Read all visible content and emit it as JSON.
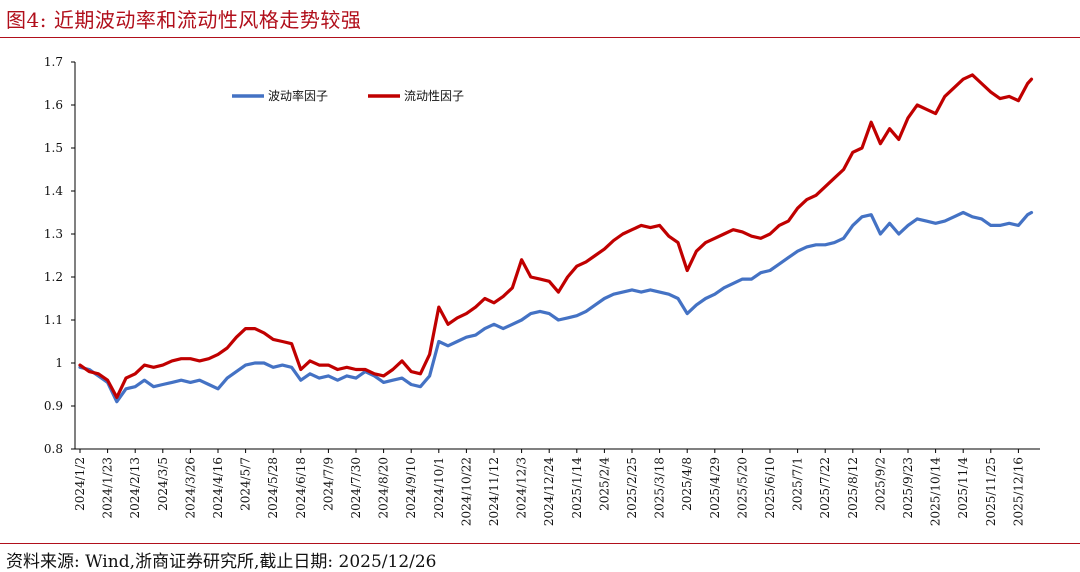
{
  "title": "图4:  近期波动率和流动性风格走势较强",
  "source": "资料来源:  Wind,浙商证券研究所,截止日期:  2025/12/26",
  "colors": {
    "accent": "#b10f1b",
    "volatility": "#4472c4",
    "liquidity": "#c00000"
  },
  "chart_data": {
    "type": "line",
    "title": "",
    "xlabel": "",
    "ylabel": "",
    "ylim": [
      0.8,
      1.7
    ],
    "y_ticks": [
      "0.8",
      "0.9",
      "1",
      "1.1",
      "1.2",
      "1.3",
      "1.4",
      "1.5",
      "1.6",
      "1.7"
    ],
    "x_ticks": [
      "2024/1/2",
      "2024/1/23",
      "2024/2/13",
      "2024/3/5",
      "2024/3/26",
      "2024/4/16",
      "2024/5/7",
      "2024/5/28",
      "2024/6/18",
      "2024/7/9",
      "2024/7/30",
      "2024/8/20",
      "2024/9/10",
      "2024/10/1",
      "2024/10/22",
      "2024/11/12",
      "2024/12/3",
      "2024/12/24",
      "2025/1/14",
      "2025/2/4",
      "2025/2/25",
      "2025/3/18",
      "2025/4/8",
      "2025/4/29",
      "2025/5/20",
      "2025/6/10",
      "2025/7/1",
      "2025/7/22",
      "2025/8/12",
      "2025/9/2",
      "2025/9/23",
      "2025/10/14",
      "2025/11/4",
      "2025/11/25",
      "2025/12/16"
    ],
    "grid": false,
    "legend_position": "top-left",
    "series": [
      {
        "name": "波动率因子",
        "color": "#4472c4",
        "x": [
          "2024/1/2",
          "2024/1/9",
          "2024/1/16",
          "2024/1/23",
          "2024/1/30",
          "2024/2/6",
          "2024/2/13",
          "2024/2/20",
          "2024/2/27",
          "2024/3/5",
          "2024/3/12",
          "2024/3/19",
          "2024/3/26",
          "2024/4/2",
          "2024/4/9",
          "2024/4/16",
          "2024/4/23",
          "2024/4/30",
          "2024/5/7",
          "2024/5/14",
          "2024/5/21",
          "2024/5/28",
          "2024/6/4",
          "2024/6/11",
          "2024/6/18",
          "2024/6/25",
          "2024/7/2",
          "2024/7/9",
          "2024/7/16",
          "2024/7/23",
          "2024/7/30",
          "2024/8/6",
          "2024/8/13",
          "2024/8/20",
          "2024/8/27",
          "2024/9/3",
          "2024/9/10",
          "2024/9/17",
          "2024/9/24",
          "2024/10/1",
          "2024/10/8",
          "2024/10/15",
          "2024/10/22",
          "2024/10/29",
          "2024/11/5",
          "2024/11/12",
          "2024/11/19",
          "2024/11/26",
          "2024/12/3",
          "2024/12/10",
          "2024/12/17",
          "2024/12/24",
          "2024/12/31",
          "2025/1/7",
          "2025/1/14",
          "2025/1/21",
          "2025/1/28",
          "2025/2/4",
          "2025/2/11",
          "2025/2/18",
          "2025/2/25",
          "2025/3/4",
          "2025/3/11",
          "2025/3/18",
          "2025/3/25",
          "2025/4/1",
          "2025/4/8",
          "2025/4/15",
          "2025/4/22",
          "2025/4/29",
          "2025/5/6",
          "2025/5/13",
          "2025/5/20",
          "2025/5/27",
          "2025/6/3",
          "2025/6/10",
          "2025/6/17",
          "2025/6/24",
          "2025/7/1",
          "2025/7/8",
          "2025/7/15",
          "2025/7/22",
          "2025/7/29",
          "2025/8/5",
          "2025/8/12",
          "2025/8/19",
          "2025/8/26",
          "2025/9/2",
          "2025/9/9",
          "2025/9/16",
          "2025/9/23",
          "2025/9/30",
          "2025/10/7",
          "2025/10/14",
          "2025/10/21",
          "2025/10/28",
          "2025/11/4",
          "2025/11/11",
          "2025/11/18",
          "2025/11/25",
          "2025/12/2",
          "2025/12/9",
          "2025/12/16",
          "2025/12/23",
          "2025/12/26"
        ],
        "values": [
          0.99,
          0.985,
          0.97,
          0.955,
          0.91,
          0.94,
          0.945,
          0.96,
          0.945,
          0.95,
          0.955,
          0.96,
          0.955,
          0.96,
          0.95,
          0.94,
          0.965,
          0.98,
          0.995,
          1.0,
          1.0,
          0.99,
          0.995,
          0.99,
          0.96,
          0.975,
          0.965,
          0.97,
          0.96,
          0.97,
          0.965,
          0.98,
          0.97,
          0.955,
          0.96,
          0.965,
          0.95,
          0.945,
          0.97,
          1.05,
          1.04,
          1.05,
          1.06,
          1.065,
          1.08,
          1.09,
          1.08,
          1.09,
          1.1,
          1.115,
          1.12,
          1.115,
          1.1,
          1.105,
          1.11,
          1.12,
          1.135,
          1.15,
          1.16,
          1.165,
          1.17,
          1.165,
          1.17,
          1.165,
          1.16,
          1.15,
          1.115,
          1.135,
          1.15,
          1.16,
          1.175,
          1.185,
          1.195,
          1.195,
          1.21,
          1.215,
          1.23,
          1.245,
          1.26,
          1.27,
          1.275,
          1.275,
          1.28,
          1.29,
          1.32,
          1.34,
          1.345,
          1.3,
          1.325,
          1.3,
          1.32,
          1.335,
          1.33,
          1.325,
          1.33,
          1.34,
          1.35,
          1.34,
          1.335,
          1.32,
          1.32,
          1.325,
          1.32,
          1.345,
          1.35
        ]
      },
      {
        "name": "流动性因子",
        "color": "#c00000",
        "x": [
          "2024/1/2",
          "2024/1/9",
          "2024/1/16",
          "2024/1/23",
          "2024/1/30",
          "2024/2/6",
          "2024/2/13",
          "2024/2/20",
          "2024/2/27",
          "2024/3/5",
          "2024/3/12",
          "2024/3/19",
          "2024/3/26",
          "2024/4/2",
          "2024/4/9",
          "2024/4/16",
          "2024/4/23",
          "2024/4/30",
          "2024/5/7",
          "2024/5/14",
          "2024/5/21",
          "2024/5/28",
          "2024/6/4",
          "2024/6/11",
          "2024/6/18",
          "2024/6/25",
          "2024/7/2",
          "2024/7/9",
          "2024/7/16",
          "2024/7/23",
          "2024/7/30",
          "2024/8/6",
          "2024/8/13",
          "2024/8/20",
          "2024/8/27",
          "2024/9/3",
          "2024/9/10",
          "2024/9/17",
          "2024/9/24",
          "2024/10/1",
          "2024/10/8",
          "2024/10/15",
          "2024/10/22",
          "2024/10/29",
          "2024/11/5",
          "2024/11/12",
          "2024/11/19",
          "2024/11/26",
          "2024/12/3",
          "2024/12/10",
          "2024/12/17",
          "2024/12/24",
          "2024/12/31",
          "2025/1/7",
          "2025/1/14",
          "2025/1/21",
          "2025/1/28",
          "2025/2/4",
          "2025/2/11",
          "2025/2/18",
          "2025/2/25",
          "2025/3/4",
          "2025/3/11",
          "2025/3/18",
          "2025/3/25",
          "2025/4/1",
          "2025/4/8",
          "2025/4/15",
          "2025/4/22",
          "2025/4/29",
          "2025/5/6",
          "2025/5/13",
          "2025/5/20",
          "2025/5/27",
          "2025/6/3",
          "2025/6/10",
          "2025/6/17",
          "2025/6/24",
          "2025/7/1",
          "2025/7/8",
          "2025/7/15",
          "2025/7/22",
          "2025/7/29",
          "2025/8/5",
          "2025/8/12",
          "2025/8/19",
          "2025/8/26",
          "2025/9/2",
          "2025/9/9",
          "2025/9/16",
          "2025/9/23",
          "2025/9/30",
          "2025/10/7",
          "2025/10/14",
          "2025/10/21",
          "2025/10/28",
          "2025/11/4",
          "2025/11/11",
          "2025/11/18",
          "2025/11/25",
          "2025/12/2",
          "2025/12/9",
          "2025/12/16",
          "2025/12/23",
          "2025/12/26"
        ],
        "values": [
          0.995,
          0.98,
          0.975,
          0.96,
          0.92,
          0.965,
          0.975,
          0.995,
          0.99,
          0.995,
          1.005,
          1.01,
          1.01,
          1.005,
          1.01,
          1.02,
          1.035,
          1.06,
          1.08,
          1.08,
          1.07,
          1.055,
          1.05,
          1.045,
          0.985,
          1.005,
          0.995,
          0.995,
          0.985,
          0.99,
          0.985,
          0.985,
          0.975,
          0.97,
          0.985,
          1.005,
          0.98,
          0.975,
          1.02,
          1.13,
          1.09,
          1.105,
          1.115,
          1.13,
          1.15,
          1.14,
          1.155,
          1.175,
          1.24,
          1.2,
          1.195,
          1.19,
          1.165,
          1.2,
          1.225,
          1.235,
          1.25,
          1.265,
          1.285,
          1.3,
          1.31,
          1.32,
          1.315,
          1.32,
          1.295,
          1.28,
          1.215,
          1.26,
          1.28,
          1.29,
          1.3,
          1.31,
          1.305,
          1.295,
          1.29,
          1.3,
          1.32,
          1.33,
          1.36,
          1.38,
          1.39,
          1.41,
          1.43,
          1.45,
          1.49,
          1.5,
          1.56,
          1.51,
          1.545,
          1.52,
          1.57,
          1.6,
          1.59,
          1.58,
          1.62,
          1.64,
          1.66,
          1.67,
          1.65,
          1.63,
          1.615,
          1.62,
          1.61,
          1.65,
          1.66
        ]
      }
    ]
  }
}
